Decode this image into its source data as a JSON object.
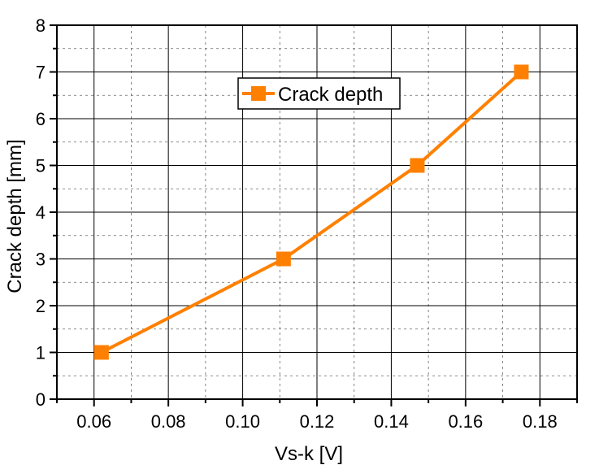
{
  "chart_data": {
    "type": "line",
    "xlabel": "Vs-k [V]",
    "ylabel": "Crack depth [mm]",
    "xlim": [
      0.05,
      0.19
    ],
    "ylim": [
      0,
      8
    ],
    "x_ticks": [
      "0.06",
      "0.08",
      "0.10",
      "0.12",
      "0.14",
      "0.16",
      "0.18"
    ],
    "y_ticks": [
      "0",
      "1",
      "2",
      "3",
      "4",
      "5",
      "6",
      "7",
      "8"
    ],
    "grid": true,
    "legend_position": "top-center",
    "series": [
      {
        "name": "Crack depth",
        "color": "#ff8000",
        "marker": "square",
        "x": [
          0.062,
          0.111,
          0.147,
          0.175
        ],
        "y": [
          1,
          3,
          5,
          7
        ]
      }
    ]
  }
}
